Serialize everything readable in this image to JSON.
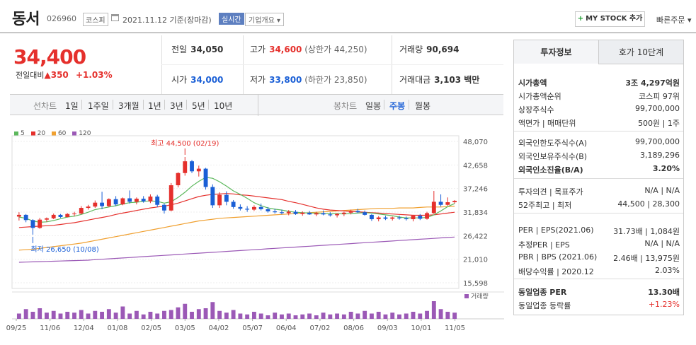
{
  "header": {
    "title": "동서",
    "code": "026960",
    "market": "코스피",
    "date": "2021.11.12 기준(장마감)",
    "realtime": "실시간",
    "corp_info": "기업개요",
    "my_stock": "MY STOCK 추가",
    "quick_order": "빠른주문"
  },
  "price": {
    "current": "34,400",
    "change_label": "전일대비",
    "change": "350",
    "change_pct": "+1.03%"
  },
  "quote": {
    "prev_label": "전일",
    "prev": "34,050",
    "high_label": "고가",
    "high": "34,600",
    "upper_limit": "(상한가 44,250)",
    "volume_label": "거래량",
    "volume": "90,694",
    "open_label": "시가",
    "open": "34,000",
    "low_label": "저가",
    "low": "33,800",
    "lower_limit": "(하한가 23,850)",
    "amount_label": "거래대금",
    "amount": "3,103 백만"
  },
  "toolbar": {
    "line_label": "선차트",
    "line_ranges": [
      "1일",
      "1주일",
      "3개월",
      "1년",
      "3년",
      "5년",
      "10년"
    ],
    "candle_label": "봉차트",
    "candle_ranges": [
      "일봉",
      "주봉",
      "월봉"
    ],
    "candle_selected": "주봉"
  },
  "chart_data": {
    "type": "candlestick",
    "legend": [
      "5",
      "20",
      "60",
      "120"
    ],
    "colors": {
      "ma5": "#5cb85c",
      "ma20": "#e5302c",
      "ma60": "#f0a030",
      "ma120": "#9b59b6",
      "up": "#e5302c",
      "down": "#1a5fd6",
      "volume": "#9b59b6"
    },
    "y_ticks": [
      "48,070",
      "42,658",
      "37,246",
      "31,834",
      "26,422",
      "21,010",
      "15,598"
    ],
    "ylim": [
      15598,
      48070
    ],
    "x_ticks": [
      "09/25",
      "11/06",
      "12/04",
      "01/08",
      "02/05",
      "03/05",
      "04/02",
      "05/07",
      "06/04",
      "07/02",
      "08/06",
      "09/03",
      "10/01",
      "11/05"
    ],
    "max_annotation": "최고 44,500 (02/19)",
    "min_annotation": "최저 26,650 (10/08)",
    "volume_label": "거래량",
    "candles": [
      [
        30800,
        31800,
        29900,
        31200
      ],
      [
        31200,
        31400,
        29500,
        30000
      ],
      [
        30000,
        30200,
        26650,
        28200
      ],
      [
        28200,
        30500,
        28000,
        30100
      ],
      [
        30100,
        30600,
        29600,
        30400
      ],
      [
        30400,
        31500,
        30200,
        31200
      ],
      [
        31200,
        31400,
        30500,
        30700
      ],
      [
        30700,
        31600,
        30600,
        31400
      ],
      [
        31400,
        31900,
        30900,
        31500
      ],
      [
        31500,
        33200,
        31300,
        32800
      ],
      [
        32800,
        33500,
        32400,
        33100
      ],
      [
        33100,
        34500,
        32800,
        34000
      ],
      [
        34000,
        36500,
        32500,
        33200
      ],
      [
        33200,
        35000,
        33000,
        34800
      ],
      [
        34800,
        35500,
        33200,
        33600
      ],
      [
        33600,
        35200,
        33400,
        35000
      ],
      [
        35000,
        36800,
        33800,
        34200
      ],
      [
        34200,
        35200,
        33600,
        34900
      ],
      [
        34900,
        35500,
        34000,
        34300
      ],
      [
        34300,
        35900,
        33900,
        35400
      ],
      [
        35400,
        35800,
        33000,
        33500
      ],
      [
        33500,
        33800,
        31500,
        32200
      ],
      [
        32200,
        38500,
        32000,
        38000
      ],
      [
        38000,
        41000,
        37500,
        40800
      ],
      [
        40800,
        44500,
        40200,
        43500
      ],
      [
        43500,
        43800,
        40800,
        41200
      ],
      [
        41200,
        42500,
        40000,
        41800
      ],
      [
        41800,
        42000,
        37000,
        37600
      ],
      [
        37600,
        38200,
        32800,
        33400
      ],
      [
        33400,
        36400,
        32800,
        35800
      ],
      [
        35800,
        36600,
        33400,
        34200
      ],
      [
        34200,
        34600,
        32600,
        33000
      ],
      [
        33000,
        33600,
        32200,
        32600
      ],
      [
        32600,
        33200,
        31900,
        32400
      ],
      [
        32400,
        33400,
        32100,
        33000
      ],
      [
        33000,
        33800,
        32200,
        32500
      ],
      [
        32500,
        33000,
        31700,
        32000
      ],
      [
        32000,
        32600,
        31500,
        31800
      ],
      [
        31800,
        32400,
        31300,
        31600
      ],
      [
        31600,
        32300,
        31100,
        31900
      ],
      [
        31900,
        32300,
        31200,
        31400
      ],
      [
        31400,
        32000,
        31000,
        31700
      ],
      [
        31700,
        32100,
        31200,
        31300
      ],
      [
        31300,
        31900,
        30900,
        31600
      ],
      [
        31600,
        32200,
        31100,
        31300
      ],
      [
        31300,
        31800,
        30800,
        31100
      ],
      [
        31100,
        31600,
        30600,
        31400
      ],
      [
        31400,
        31900,
        30900,
        31700
      ],
      [
        31700,
        32400,
        31300,
        32100
      ],
      [
        32100,
        32600,
        31600,
        31800
      ],
      [
        31800,
        32200,
        31000,
        31200
      ],
      [
        31200,
        31400,
        29800,
        30200
      ],
      [
        30200,
        30900,
        29700,
        30600
      ],
      [
        30600,
        31000,
        30000,
        30300
      ],
      [
        30300,
        30800,
        29900,
        30600
      ],
      [
        30600,
        31000,
        30100,
        30400
      ],
      [
        30400,
        30800,
        29900,
        30200
      ],
      [
        30200,
        31200,
        29700,
        31000
      ],
      [
        31000,
        31400,
        30000,
        30300
      ],
      [
        30300,
        31900,
        30100,
        31600
      ],
      [
        31600,
        36700,
        31400,
        34200
      ],
      [
        34200,
        35900,
        33100,
        33500
      ],
      [
        33500,
        35200,
        33300,
        34100
      ],
      [
        34100,
        34600,
        33800,
        34400
      ]
    ],
    "ma5": [
      30700,
      30400,
      29800,
      29500,
      29600,
      29900,
      30300,
      30700,
      30900,
      31300,
      31800,
      32400,
      32700,
      33000,
      33300,
      33700,
      34000,
      34100,
      34300,
      34400,
      34300,
      33900,
      34200,
      35200,
      36400,
      37800,
      38900,
      39800,
      39600,
      38800,
      37800,
      36700,
      35900,
      35000,
      34000,
      33300,
      32800,
      32500,
      32300,
      32000,
      31800,
      31700,
      31600,
      31600,
      31500,
      31500,
      31500,
      31400,
      31500,
      31600,
      31700,
      31600,
      31400,
      31200,
      31000,
      30700,
      30500,
      30500,
      30500,
      30600,
      31200,
      32100,
      33100,
      33800
    ],
    "ma20": [
      28300,
      28400,
      28500,
      28600,
      28700,
      28800,
      29000,
      29200,
      29400,
      29700,
      30000,
      30300,
      30600,
      30900,
      31300,
      31600,
      31900,
      32200,
      32500,
      32800,
      33000,
      33200,
      33500,
      33900,
      34400,
      34900,
      35400,
      35700,
      35900,
      36000,
      36100,
      36000,
      35800,
      35700,
      35500,
      35300,
      35100,
      34900,
      34700,
      34300,
      34000,
      33600,
      33200,
      32800,
      32500,
      32300,
      32200,
      32100,
      32000,
      31900,
      31800,
      31700,
      31600,
      31500,
      31400,
      31300,
      31200,
      31100,
      31100,
      31100,
      31200,
      31400,
      31600,
      31800
    ],
    "ma60": [
      23100,
      23200,
      23300,
      23500,
      23700,
      23900,
      24100,
      24300,
      24500,
      24700,
      25000,
      25300,
      25600,
      25900,
      26200,
      26500,
      26800,
      27100,
      27400,
      27700,
      28000,
      28300,
      28600,
      28900,
      29200,
      29500,
      29800,
      30000,
      30200,
      30400,
      30500,
      30600,
      30700,
      30800,
      30900,
      31000,
      31100,
      31200,
      31300,
      31400,
      31500,
      31600,
      31700,
      31800,
      31900,
      32000,
      32100,
      32200,
      32300,
      32400,
      32500,
      32600,
      32700,
      32700,
      32700,
      32800,
      32800,
      32800,
      32900,
      33000,
      33000,
      33000,
      33100,
      33200
    ],
    "ma120": [
      20300,
      20350,
      20400,
      20450,
      20500,
      20550,
      20600,
      20650,
      20700,
      20750,
      20800,
      20900,
      21000,
      21100,
      21200,
      21300,
      21400,
      21500,
      21600,
      21700,
      21800,
      21900,
      22000,
      22100,
      22200,
      22300,
      22400,
      22500,
      22600,
      22700,
      22800,
      22900,
      23000,
      23100,
      23200,
      23300,
      23400,
      23500,
      23600,
      23700,
      23800,
      23900,
      24000,
      24100,
      24200,
      24300,
      24400,
      24500,
      24600,
      24700,
      24800,
      24900,
      25000,
      25100,
      25200,
      25300,
      25400,
      25500,
      25600,
      25700,
      25800,
      25900,
      26000,
      26100
    ],
    "volume": [
      30,
      55,
      40,
      60,
      35,
      45,
      30,
      40,
      35,
      50,
      30,
      45,
      40,
      55,
      35,
      70,
      30,
      45,
      25,
      40,
      30,
      45,
      50,
      65,
      85,
      40,
      55,
      60,
      95,
      45,
      35,
      50,
      30,
      25,
      40,
      30,
      20,
      35,
      25,
      30,
      20,
      25,
      30,
      20,
      35,
      25,
      30,
      25,
      40,
      30,
      45,
      30,
      40,
      25,
      35,
      25,
      30,
      40,
      30,
      45,
      100,
      55,
      40,
      35
    ]
  },
  "info": {
    "tab1": "투자정보",
    "tab2": "호가 10단계",
    "rows1": [
      {
        "k": "시가총액",
        "v": "3조 4,297억원",
        "bold": true
      },
      {
        "k": "시가총액순위",
        "v": "코스피 97위"
      },
      {
        "k": "상장주식수",
        "v": "99,700,000"
      },
      {
        "k": "액면가 | 매매단위",
        "v": "500원 | 1주"
      }
    ],
    "rows2": [
      {
        "k": "외국인한도주식수(A)",
        "v": "99,700,000"
      },
      {
        "k": "외국인보유주식수(B)",
        "v": "3,189,296"
      },
      {
        "k": "외국인소진율(B/A)",
        "v": "3.20%",
        "bold": true
      }
    ],
    "rows3": [
      {
        "k": "투자의견 | 목표주가",
        "v": "N/A | N/A"
      },
      {
        "k": "52주최고 | 최저",
        "v": "44,500 | 28,300"
      }
    ],
    "rows4": [
      {
        "k": "PER | EPS(2021.06)",
        "v": "31.73배 | 1,084원"
      },
      {
        "k": "추정PER | EPS",
        "v": "N/A | N/A"
      },
      {
        "k": "PBR | BPS (2021.06)",
        "v": "2.46배 | 13,975원"
      },
      {
        "k": "배당수익률 | 2020.12",
        "v": "2.03%"
      }
    ],
    "rows5": [
      {
        "k": "동일업종 PER",
        "v": "13.30배",
        "bold": true
      },
      {
        "k": "동일업종 등락률",
        "v": "+1.23%",
        "red": true
      }
    ]
  }
}
